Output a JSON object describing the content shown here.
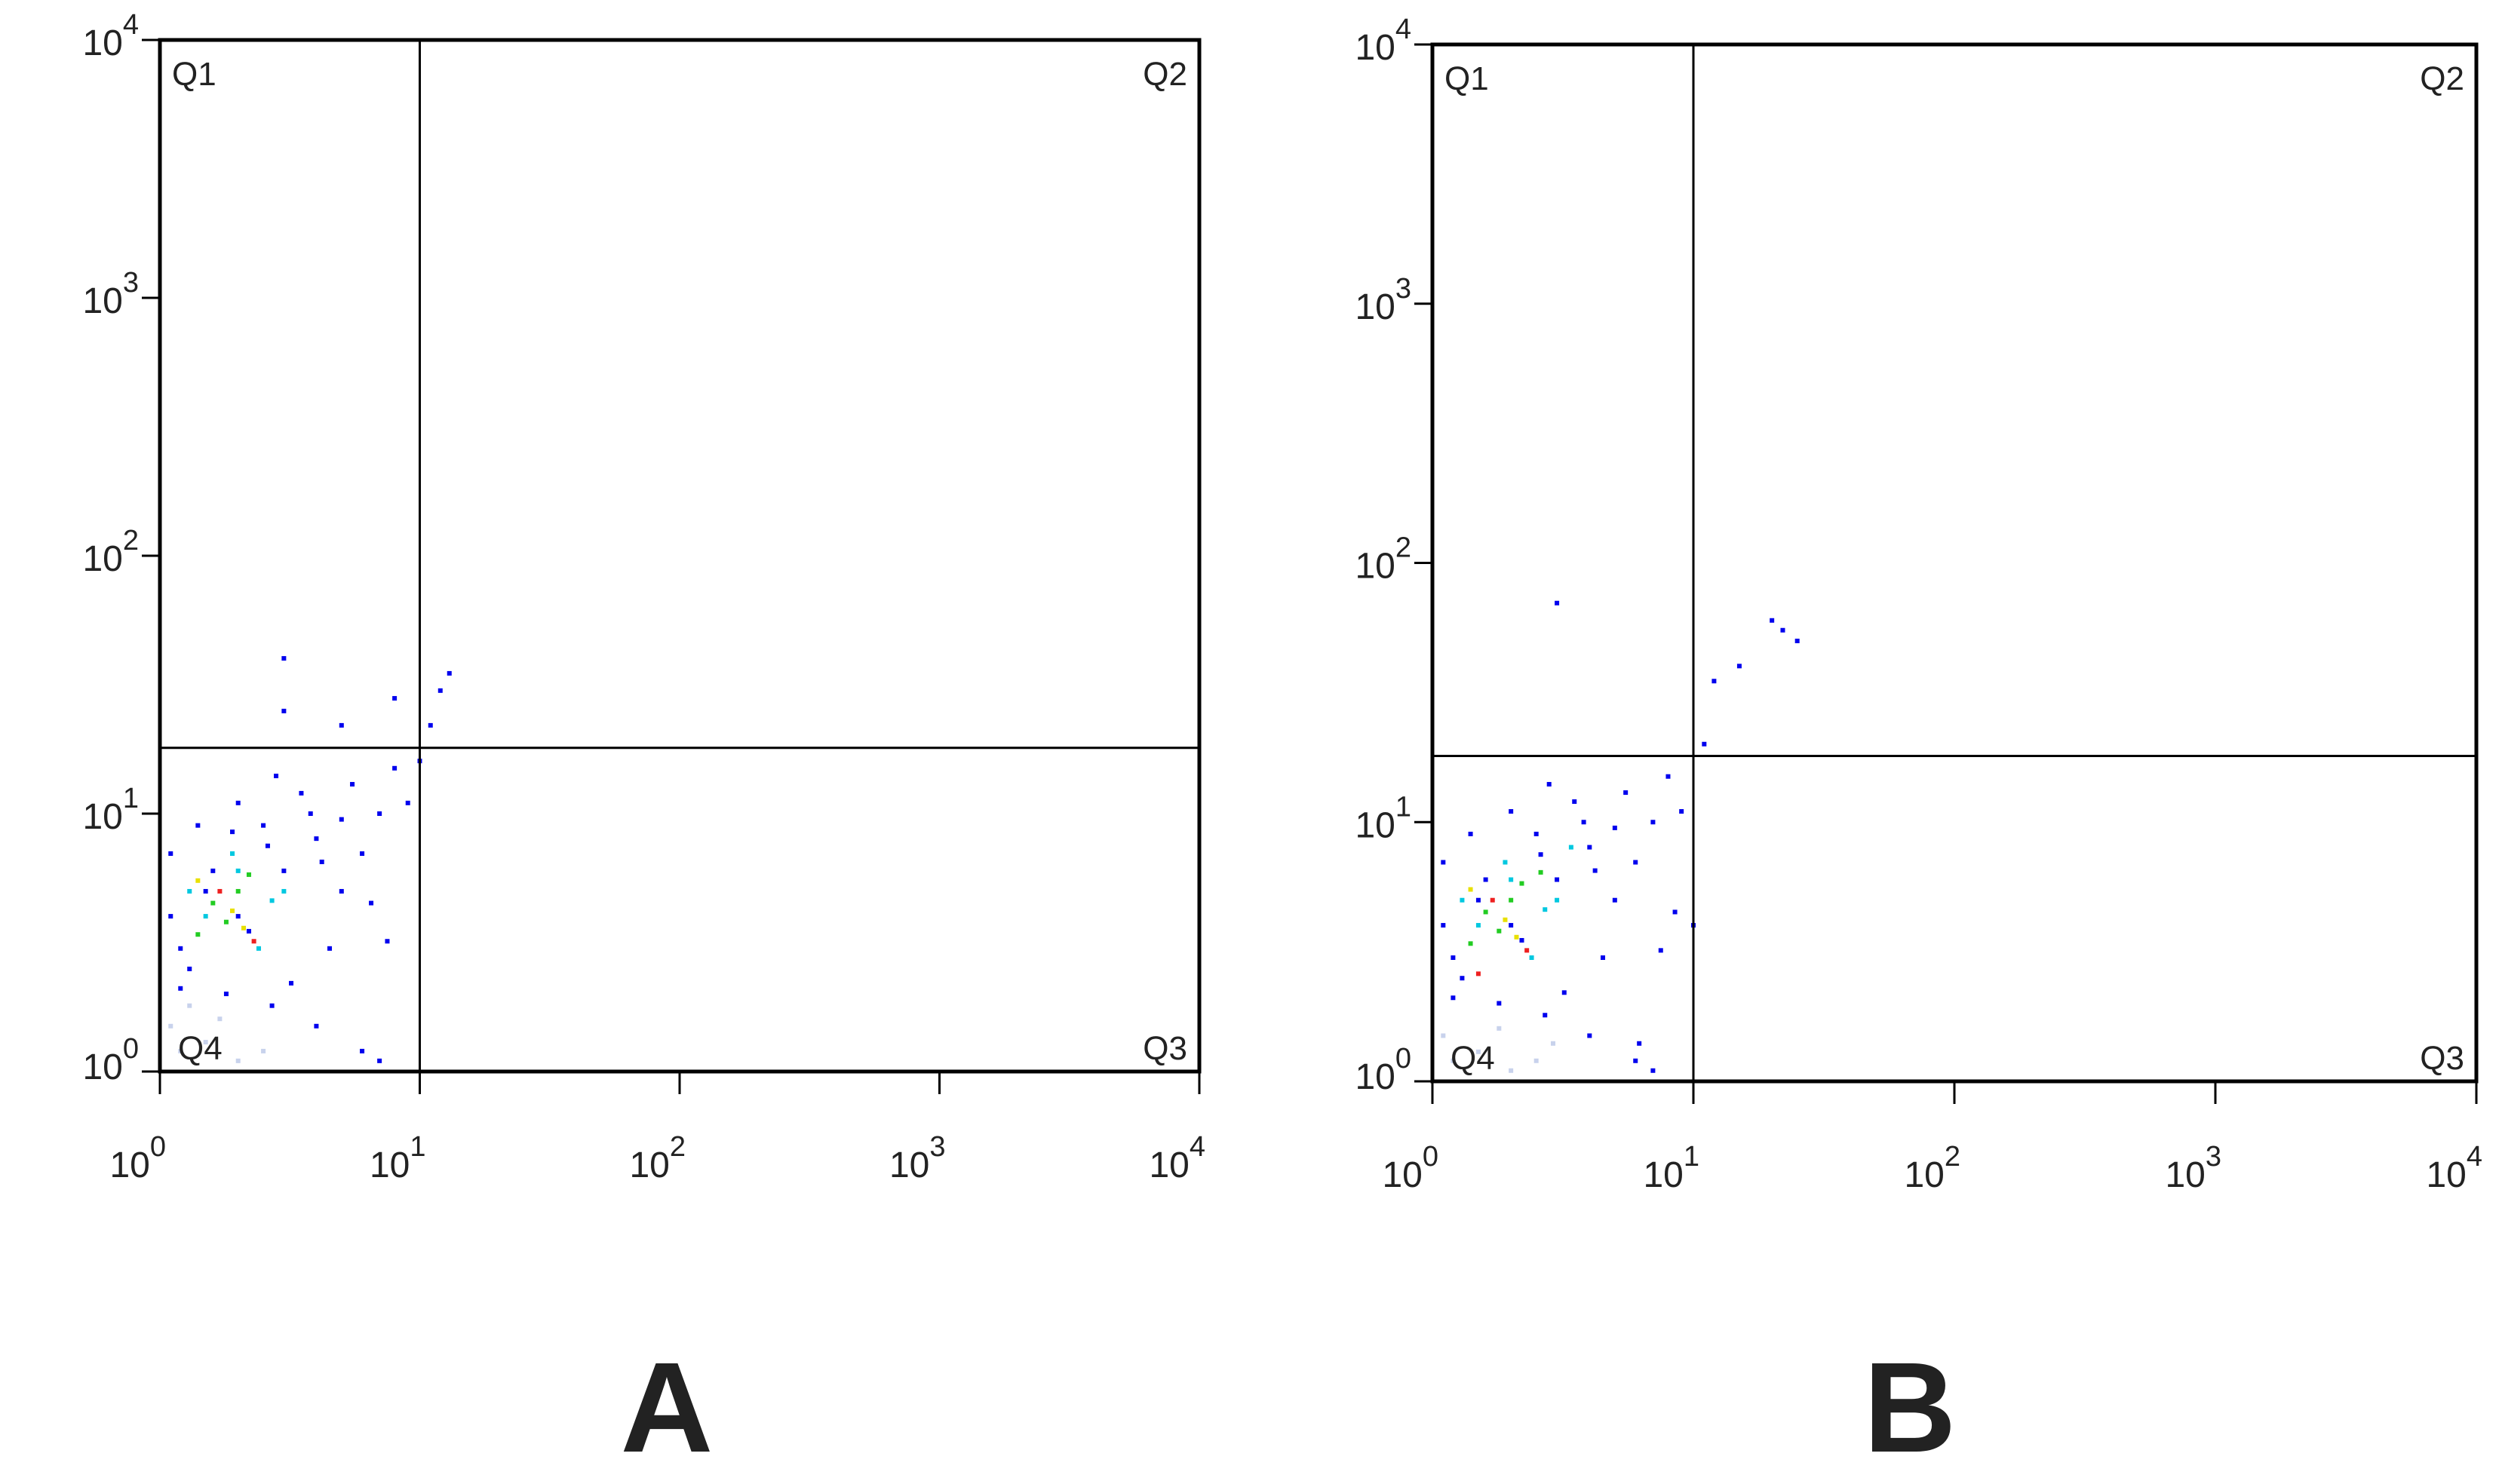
{
  "chart_data": [
    {
      "type": "scatter",
      "panel_label": "A",
      "xscale": "log",
      "yscale": "log",
      "xlim": [
        1,
        10000
      ],
      "ylim": [
        1,
        10000
      ],
      "xticks": [
        {
          "value": 1,
          "label": "10",
          "exponent": "0"
        },
        {
          "value": 10,
          "label": "10",
          "exponent": "1"
        },
        {
          "value": 100,
          "label": "10",
          "exponent": "2"
        },
        {
          "value": 1000,
          "label": "10",
          "exponent": "3"
        },
        {
          "value": 10000,
          "label": "10",
          "exponent": "4"
        }
      ],
      "yticks": [
        {
          "value": 1,
          "label": "10",
          "exponent": "0"
        },
        {
          "value": 10,
          "label": "10",
          "exponent": "1"
        },
        {
          "value": 100,
          "label": "10",
          "exponent": "2"
        },
        {
          "value": 1000,
          "label": "10",
          "exponent": "3"
        },
        {
          "value": 10000,
          "label": "10",
          "exponent": "4"
        }
      ],
      "quadrant_gate": {
        "x": 10,
        "y": 18
      },
      "quadrant_labels": [
        "Q1",
        "Q2",
        "Q3",
        "Q4"
      ],
      "series": [
        {
          "color": "#c8d2ec",
          "x": [
            1.2,
            1.5,
            2,
            1.1,
            2.5,
            1.7,
            1.3
          ],
          "y": [
            1.2,
            1.3,
            1.1,
            1.5,
            1.2,
            1.6,
            1.8
          ]
        },
        {
          "color": "#0000ee",
          "x": [
            1.2,
            1.5,
            2,
            1.1,
            3,
            2.5,
            4,
            5,
            1.3,
            1.8,
            3.5,
            6,
            2.2,
            1.6,
            4.5,
            7,
            1.1,
            2.8,
            3.2,
            5.5,
            8,
            9,
            11,
            12,
            3,
            3,
            5,
            8,
            13,
            10,
            1.4,
            2,
            6,
            7,
            4,
            2.6,
            6.5,
            5,
            3.8,
            1.2,
            2.7,
            4.2,
            7.5,
            1.9
          ],
          "y": [
            3,
            5,
            4,
            7,
            6,
            9,
            8,
            5,
            2.5,
            2,
            12,
            7,
            3.5,
            6,
            3,
            10,
            4,
            14,
            2.2,
            13,
            15,
            11,
            22,
            30,
            40,
            25,
            22,
            28,
            35,
            16,
            9,
            11,
            1.2,
            1.1,
            1.5,
            7.5,
            4.5,
            9.5,
            10,
            2.1,
            1.8,
            6.5,
            3.2,
            8.5
          ]
        },
        {
          "color": "#00c8e0",
          "x": [
            1.5,
            2,
            1.3,
            2.4,
            3,
            1.9,
            2.7
          ],
          "y": [
            4,
            6,
            5,
            3,
            5,
            7,
            4.6
          ]
        },
        {
          "color": "#22cc22",
          "x": [
            1.6,
            2,
            1.8,
            2.2,
            1.4
          ],
          "y": [
            4.5,
            5,
            3.8,
            5.8,
            3.4
          ]
        },
        {
          "color": "#e8e000",
          "x": [
            1.9,
            1.4,
            2.1
          ],
          "y": [
            4.2,
            5.5,
            3.6
          ]
        },
        {
          "color": "#ee2020",
          "x": [
            1.7,
            2.3
          ],
          "y": [
            5,
            3.2
          ]
        }
      ]
    },
    {
      "type": "scatter",
      "panel_label": "B",
      "xscale": "log",
      "yscale": "log",
      "xlim": [
        1,
        10000
      ],
      "ylim": [
        1,
        10000
      ],
      "xticks": [
        {
          "value": 1,
          "label": "10",
          "exponent": "0"
        },
        {
          "value": 10,
          "label": "10",
          "exponent": "1"
        },
        {
          "value": 100,
          "label": "10",
          "exponent": "2"
        },
        {
          "value": 1000,
          "label": "10",
          "exponent": "3"
        },
        {
          "value": 10000,
          "label": "10",
          "exponent": "4"
        }
      ],
      "yticks": [
        {
          "value": 1,
          "label": "10",
          "exponent": "0"
        },
        {
          "value": 10,
          "label": "10",
          "exponent": "1"
        },
        {
          "value": 100,
          "label": "10",
          "exponent": "2"
        },
        {
          "value": 1000,
          "label": "10",
          "exponent": "3"
        },
        {
          "value": 10000,
          "label": "10",
          "exponent": "4"
        }
      ],
      "quadrant_gate": {
        "x": 10,
        "y": 18
      },
      "quadrant_labels": [
        "Q1",
        "Q2",
        "Q3",
        "Q4"
      ],
      "series": [
        {
          "color": "#c8d2ec",
          "x": [
            1.2,
            1.5,
            2,
            1.1,
            2.5,
            1.8,
            2.9
          ],
          "y": [
            1.2,
            1.3,
            1.1,
            1.5,
            1.2,
            1.6,
            1.4
          ]
        },
        {
          "color": "#0000ee",
          "x": [
            1.2,
            1.5,
            2,
            1.1,
            3,
            2.5,
            4,
            5,
            1.3,
            1.8,
            3.5,
            6,
            2.2,
            1.6,
            4.5,
            7,
            1.1,
            2.8,
            3.2,
            5.5,
            8,
            9,
            11,
            12,
            15,
            20,
            22,
            25,
            3,
            10,
            1.4,
            2,
            6,
            7,
            4,
            2.6,
            8.5,
            5,
            3.8,
            1.2,
            2.7,
            4.2,
            7.5,
            6.2
          ],
          "y": [
            3,
            5,
            4,
            7,
            6,
            9,
            8,
            5,
            2.5,
            2,
            12,
            7,
            3.5,
            6,
            3,
            10,
            4,
            14,
            2.2,
            13,
            15,
            11,
            20,
            35,
            40,
            60,
            55,
            50,
            70,
            4,
            9,
            11,
            1.2,
            1.1,
            1.5,
            7.5,
            4.5,
            9.5,
            10,
            2.1,
            1.8,
            6.5,
            3.2,
            1.4
          ]
        },
        {
          "color": "#00c8e0",
          "x": [
            1.5,
            2,
            1.3,
            2.4,
            3,
            1.9,
            2.7,
            3.4
          ],
          "y": [
            4,
            6,
            5,
            3,
            5,
            7,
            4.6,
            8
          ]
        },
        {
          "color": "#22cc22",
          "x": [
            1.6,
            2,
            1.8,
            2.2,
            1.4,
            2.6
          ],
          "y": [
            4.5,
            5,
            3.8,
            5.8,
            3.4,
            6.4
          ]
        },
        {
          "color": "#e8e000",
          "x": [
            1.9,
            1.4,
            2.1
          ],
          "y": [
            4.2,
            5.5,
            3.6
          ]
        },
        {
          "color": "#ee2020",
          "x": [
            1.7,
            2.3,
            1.5
          ],
          "y": [
            5,
            3.2,
            2.6
          ]
        }
      ]
    }
  ]
}
